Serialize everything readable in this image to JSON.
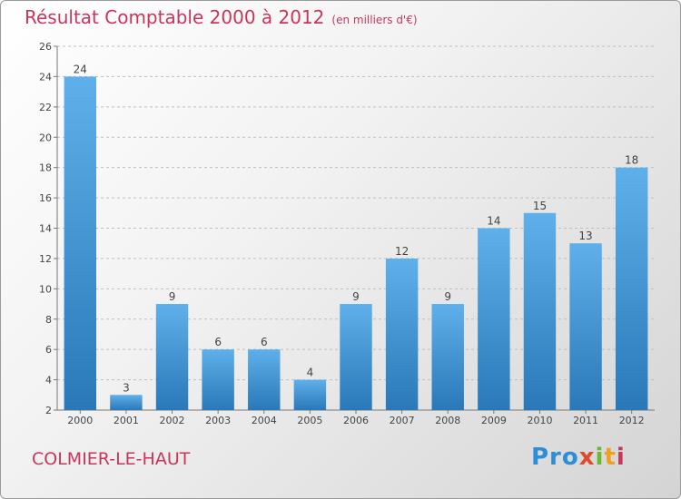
{
  "header": {
    "title": "Résultat Comptable 2000 à 2012",
    "subtitle": "(en milliers d'€)"
  },
  "footer": {
    "commune": "COLMIER-LE-HAUT",
    "logo": [
      "Pro",
      "x",
      "i",
      "t",
      "i"
    ]
  },
  "colors": {
    "title": "#c8365c",
    "bar_top": "#5fb0ea",
    "bar_bottom": "#2a78b8",
    "grid": "#bfbfbf"
  },
  "chart_data": {
    "type": "bar",
    "title": "Résultat Comptable 2000 à 2012",
    "ylabel": "en milliers d'€",
    "xlabel": "",
    "categories": [
      "2000",
      "2001",
      "2002",
      "2003",
      "2004",
      "2005",
      "2006",
      "2007",
      "2008",
      "2009",
      "2010",
      "2011",
      "2012"
    ],
    "values": [
      24,
      3,
      9,
      6,
      6,
      4,
      9,
      12,
      9,
      14,
      15,
      13,
      18
    ],
    "ylim": [
      2,
      26
    ],
    "yticks": [
      2,
      4,
      6,
      8,
      10,
      12,
      14,
      16,
      18,
      20,
      22,
      24,
      26
    ],
    "grid": true
  }
}
